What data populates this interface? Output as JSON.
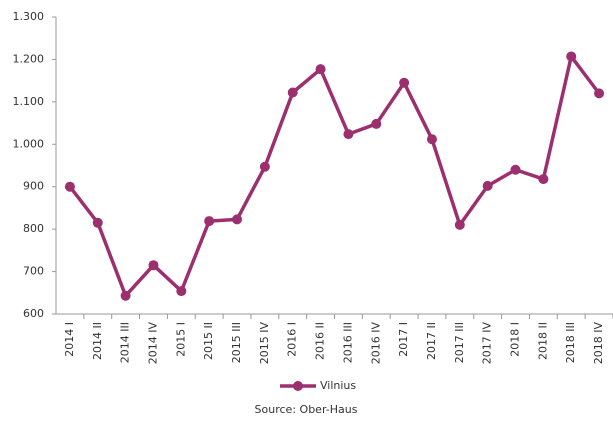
{
  "chart_data": {
    "type": "line",
    "categories": [
      "2014 I",
      "2014 II",
      "2014 III",
      "2014 IV",
      "2015 I",
      "2015 II",
      "2015 III",
      "2015 IV",
      "2016 I",
      "2016 II",
      "2016 III",
      "2016 IV",
      "2017 I",
      "2017 II",
      "2017 III",
      "2017 IV",
      "2018 I",
      "2018 II",
      "2018 III",
      "2018 IV"
    ],
    "series": [
      {
        "name": "Vilnius",
        "color": "#9c2f6e",
        "values": [
          900,
          815,
          643,
          715,
          654,
          819,
          823,
          947,
          1122,
          1177,
          1024,
          1048,
          1145,
          1012,
          810,
          902,
          940,
          918,
          1207,
          1120
        ]
      }
    ],
    "ylim": [
      600,
      1300
    ],
    "yticks": [
      600,
      700,
      800,
      900,
      {
        "value": 1000,
        "label": "1.000"
      },
      {
        "value": 1100,
        "label": "1.100"
      },
      {
        "value": 1200,
        "label": "1.200"
      },
      {
        "value": 1300,
        "label": "1.300"
      }
    ],
    "legend": "bottom",
    "source": "Source: Ober-Haus"
  }
}
